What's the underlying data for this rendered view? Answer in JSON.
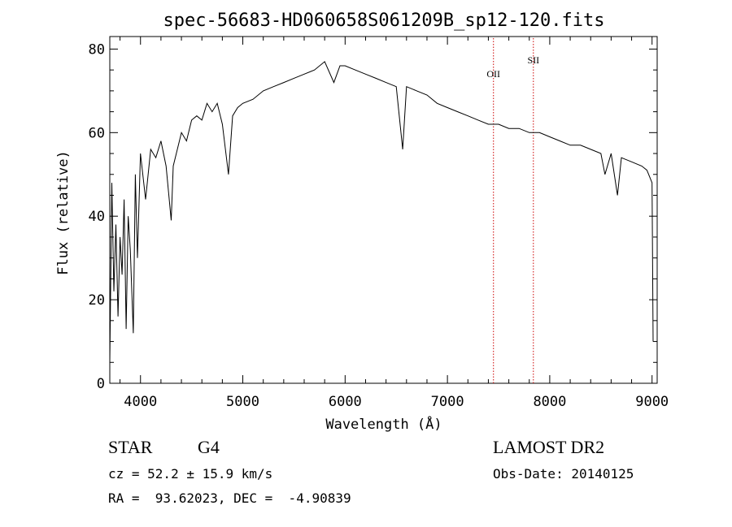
{
  "chart_data": {
    "type": "line",
    "title": "spec-56683-HD060658S061209B_sp12-120.fits",
    "xlabel": "Wavelength (Å)",
    "ylabel": "Flux (relative)",
    "xlim": [
      3700,
      9050
    ],
    "ylim": [
      0,
      83
    ],
    "xticks": [
      4000,
      5000,
      6000,
      7000,
      8000,
      9000
    ],
    "yticks": [
      0,
      20,
      40,
      60,
      80
    ],
    "grid": false,
    "line_color": "#000000",
    "marker_color": "#cc0000",
    "series": [
      {
        "x": [
          3700,
          3720,
          3740,
          3760,
          3780,
          3800,
          3820,
          3840,
          3860,
          3880,
          3900,
          3930,
          3950,
          3970,
          4000,
          4050,
          4100,
          4150,
          4200,
          4250,
          4300,
          4320,
          4350,
          4400,
          4450,
          4500,
          4550,
          4600,
          4650,
          4700,
          4750,
          4800,
          4860,
          4900,
          4950,
          5000,
          5100,
          5200,
          5300,
          5400,
          5500,
          5600,
          5700,
          5800,
          5890,
          5950,
          6000,
          6100,
          6200,
          6300,
          6400,
          6500,
          6563,
          6600,
          6700,
          6800,
          6900,
          7000,
          7100,
          7200,
          7300,
          7400,
          7500,
          7600,
          7700,
          7800,
          7900,
          8000,
          8100,
          8200,
          8300,
          8400,
          8500,
          8540,
          8600,
          8662,
          8700,
          8800,
          8900,
          8950,
          9000,
          9010
        ],
        "y": [
          5,
          48,
          22,
          38,
          16,
          35,
          26,
          44,
          13,
          40,
          32,
          12,
          50,
          30,
          55,
          44,
          56,
          54,
          58,
          52,
          39,
          52,
          55,
          60,
          58,
          63,
          64,
          63,
          67,
          65,
          67,
          62,
          50,
          64,
          66,
          67,
          68,
          70,
          71,
          72,
          73,
          74,
          75,
          77,
          72,
          76,
          76,
          75,
          74,
          73,
          72,
          71,
          56,
          71,
          70,
          69,
          67,
          66,
          65,
          64,
          63,
          62,
          62,
          61,
          61,
          60,
          60,
          59,
          58,
          57,
          57,
          56,
          55,
          50,
          55,
          45,
          54,
          53,
          52,
          51,
          48,
          10
        ]
      }
    ],
    "line_markers": [
      {
        "label": "OII",
        "x": 7450
      },
      {
        "label": "SII",
        "x": 7840
      }
    ]
  },
  "info": {
    "object_class": "STAR",
    "subclass": "G4",
    "survey": "LAMOST DR2",
    "redshift": "cz = 52.2 ± 15.9 km/s",
    "obs_date": "Obs-Date: 20140125",
    "coords": "RA =  93.62023, DEC =  -4.90839"
  }
}
